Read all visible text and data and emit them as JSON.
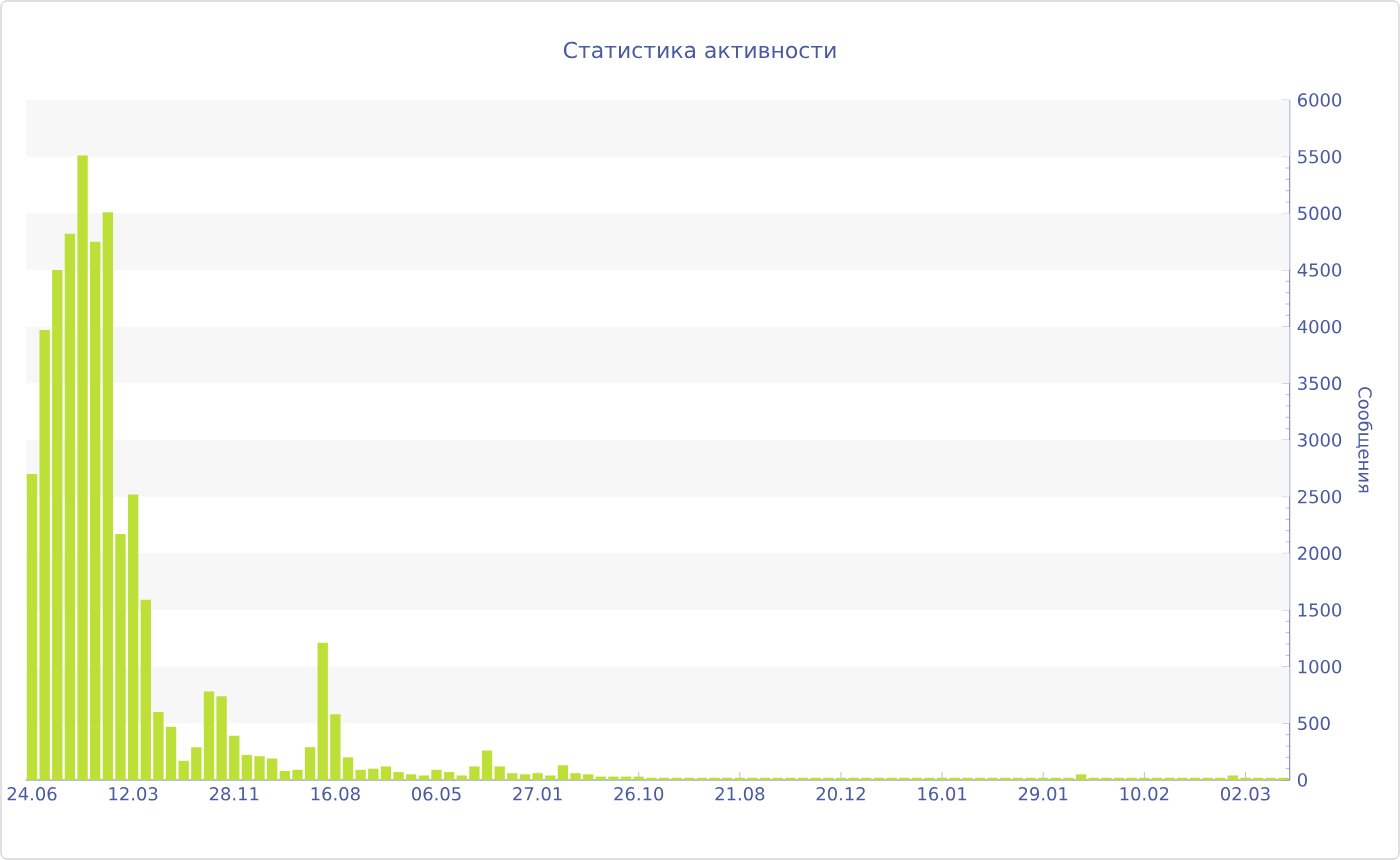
{
  "chart_data": {
    "type": "bar",
    "title": "Статистика активности",
    "ylabel": "Сообщения",
    "categories": [
      "24.06",
      null,
      null,
      null,
      null,
      null,
      null,
      null,
      "12.03",
      null,
      null,
      null,
      null,
      null,
      null,
      null,
      "28.11",
      null,
      null,
      null,
      null,
      null,
      null,
      null,
      "16.08",
      null,
      null,
      null,
      null,
      null,
      null,
      null,
      "06.05",
      null,
      null,
      null,
      null,
      null,
      null,
      null,
      "27.01",
      null,
      null,
      null,
      null,
      null,
      null,
      null,
      "26.10",
      null,
      null,
      null,
      null,
      null,
      null,
      null,
      "21.08",
      null,
      null,
      null,
      null,
      null,
      null,
      null,
      "20.12",
      null,
      null,
      null,
      null,
      null,
      null,
      null,
      "16.01",
      null,
      null,
      null,
      null,
      null,
      null,
      null,
      "29.01",
      null,
      null,
      null,
      null,
      null,
      null,
      null,
      "10.02",
      null,
      null,
      null,
      null,
      null,
      null,
      null,
      "02.03",
      null,
      null,
      null
    ],
    "values": [
      2700,
      3970,
      4500,
      4820,
      5510,
      4750,
      5010,
      2170,
      2520,
      1590,
      600,
      470,
      170,
      290,
      780,
      740,
      390,
      220,
      210,
      190,
      80,
      90,
      290,
      1210,
      580,
      200,
      90,
      100,
      120,
      70,
      50,
      40,
      90,
      70,
      40,
      120,
      260,
      120,
      60,
      50,
      60,
      40,
      130,
      60,
      50,
      30,
      30,
      30,
      30,
      20,
      20,
      20,
      20,
      20,
      20,
      20,
      20,
      20,
      20,
      20,
      20,
      20,
      20,
      20,
      20,
      20,
      20,
      20,
      20,
      20,
      20,
      20,
      20,
      20,
      20,
      20,
      20,
      20,
      20,
      20,
      20,
      20,
      20,
      50,
      20,
      20,
      20,
      20,
      20,
      20,
      20,
      20,
      20,
      20,
      20,
      40,
      20,
      20,
      20,
      20
    ],
    "color": "#bde038",
    "ylim": [
      0,
      6000
    ],
    "yticks": [
      0,
      500,
      1000,
      1500,
      2000,
      2500,
      3000,
      3500,
      4000,
      4500,
      5000,
      5500,
      6000
    ],
    "bands": [
      {
        "axis": "y",
        "from": 500,
        "to": 1000,
        "color": "#f7f7f7"
      },
      {
        "axis": "y",
        "from": 1500,
        "to": 2000,
        "color": "#f7f7f7"
      },
      {
        "axis": "y",
        "from": 2500,
        "to": 3000,
        "color": "#f7f7f7"
      },
      {
        "axis": "y",
        "from": 3500,
        "to": 4000,
        "color": "#f7f7f7"
      },
      {
        "axis": "y",
        "from": 4500,
        "to": 5000,
        "color": "#f7f7f7"
      },
      {
        "axis": "y",
        "from": 5500,
        "to": 6000,
        "color": "#f7f7f7"
      }
    ]
  }
}
